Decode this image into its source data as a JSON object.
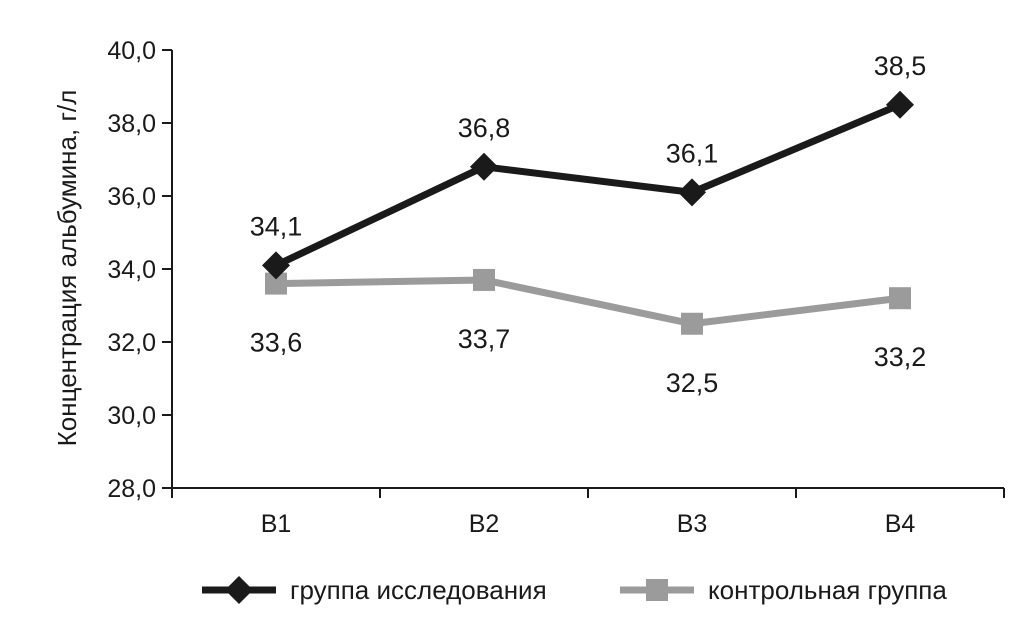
{
  "chart_data": {
    "type": "line",
    "title": "",
    "xlabel": "",
    "ylabel": "Концентрация альбумина, г/л",
    "categories": [
      "В1",
      "В2",
      "В3",
      "В4"
    ],
    "ylim": [
      28.0,
      40.0
    ],
    "yticks": [
      "28,0",
      "30,0",
      "32,0",
      "34,0",
      "36,0",
      "38,0",
      "40,0"
    ],
    "grid": false,
    "legend_position": "bottom",
    "series": [
      {
        "name": "группа исследования",
        "values": [
          34.1,
          36.8,
          36.1,
          38.5
        ],
        "labels": [
          "34,1",
          "36,8",
          "36,1",
          "38,5"
        ],
        "color": "#1a1a1a",
        "marker": "diamond",
        "label_side": "above"
      },
      {
        "name": "контрольная группа",
        "values": [
          33.6,
          33.7,
          32.5,
          33.2
        ],
        "labels": [
          "33,6",
          "33,7",
          "32,5",
          "33,2"
        ],
        "color": "#9b9b9b",
        "marker": "square",
        "label_side": "below"
      }
    ]
  }
}
